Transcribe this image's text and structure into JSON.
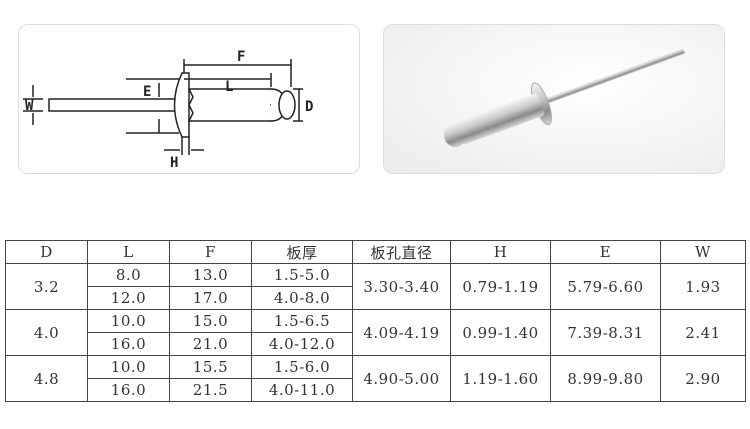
{
  "diagram": {
    "labels": [
      "F",
      "L",
      "E",
      "W",
      "D",
      "H"
    ]
  },
  "table": {
    "headers": [
      "D",
      "L",
      "F",
      "板厚",
      "板孔直径",
      "H",
      "E",
      "W"
    ],
    "groups": [
      {
        "D": "3.2",
        "hole": "3.30-3.40",
        "H": "0.79-1.19",
        "E": "5.79-6.60",
        "W": "1.93",
        "rows": [
          [
            "8.0",
            "13.0",
            "1.5-5.0"
          ],
          [
            "12.0",
            "17.0",
            "4.0-8.0"
          ]
        ]
      },
      {
        "D": "4.0",
        "hole": "4.09-4.19",
        "H": "0.99-1.40",
        "E": "7.39-8.31",
        "W": "2.41",
        "rows": [
          [
            "10.0",
            "15.0",
            "1.5-6.5"
          ],
          [
            "16.0",
            "21.0",
            "4.0-12.0"
          ]
        ]
      },
      {
        "D": "4.8",
        "hole": "4.90-5.00",
        "H": "1.19-1.60",
        "E": "8.99-9.80",
        "W": "2.90",
        "rows": [
          [
            "10.0",
            "15.5",
            "1.5-6.0"
          ],
          [
            "16.0",
            "21.5",
            "4.0-11.0"
          ]
        ]
      }
    ]
  }
}
